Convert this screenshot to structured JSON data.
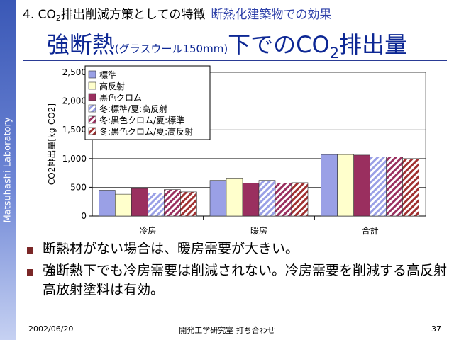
{
  "sidebar": {
    "text": "Matsuhashi Laboratory"
  },
  "header": {
    "section_prefix": "4. CO",
    "section_sub": "2",
    "section_suffix": "排出削減方策としての特徴",
    "section_highlight": "断熱化建築物での効果"
  },
  "title": {
    "main": "強断熱",
    "note": "(グラスウール150mm)",
    "rest": "下でのCO",
    "sub": "2",
    "tail": "排出量"
  },
  "chart_data": {
    "type": "bar",
    "categories": [
      "冷房",
      "暖房",
      "合計"
    ],
    "ylabel": "CO2排出量[kg-CO2]",
    "ylim": [
      0,
      2500
    ],
    "yticks": [
      0,
      500,
      1000,
      1500,
      2000,
      2500
    ],
    "ytick_labels": [
      "0",
      "500",
      "1,000",
      "1,500",
      "2,000",
      "2,500"
    ],
    "grid": true,
    "legend_position": "top-left",
    "series": [
      {
        "name": "標準",
        "values": [
          450,
          620,
          1070
        ],
        "color": "#9aa0e6",
        "pattern": "solid"
      },
      {
        "name": "高反射",
        "values": [
          380,
          660,
          1070
        ],
        "color": "#ffffcc",
        "pattern": "solid"
      },
      {
        "name": "黒色クロム",
        "values": [
          480,
          570,
          1060
        ],
        "color": "#9a2f5f",
        "pattern": "solid"
      },
      {
        "name": "冬:標準/夏:高反射",
        "values": [
          400,
          620,
          1030
        ],
        "color": "#9aa0e6",
        "pattern": "hatch-light"
      },
      {
        "name": "冬:黒色クロム/夏:標準",
        "values": [
          460,
          570,
          1030
        ],
        "color": "#9a2f5f",
        "pattern": "hatch-dark"
      },
      {
        "name": "冬:黒色クロム/夏:高反射",
        "values": [
          420,
          580,
          1000
        ],
        "color": "#a03030",
        "pattern": "hatch-red"
      }
    ]
  },
  "bullets": [
    "断熱材がない場合は、暖房需要が大きい。",
    "強断熱下でも冷房需要は削減されない。冷房需要を削減する高反射高放射塗料は有効。"
  ],
  "footer": {
    "date": "2002/06/20",
    "center": "開発工学研究室 打ち合わせ",
    "page": "37"
  }
}
